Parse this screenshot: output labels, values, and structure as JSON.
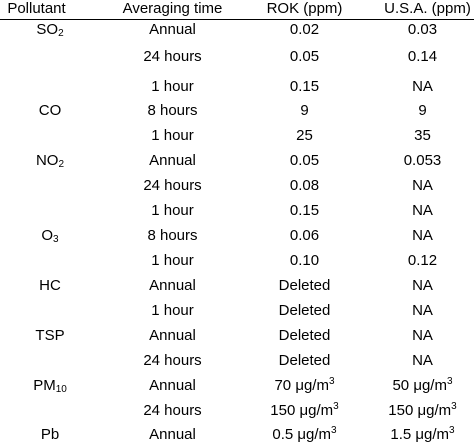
{
  "headers": [
    "Pollutant",
    "Averaging time",
    "ROK (ppm)",
    "U.S.A. (ppm)"
  ],
  "rows": [
    {
      "pollutant": "SO",
      "sub": "2",
      "time": "Annual",
      "rok": "0.02",
      "usa": "0.03"
    },
    {
      "pollutant": "",
      "sub": "",
      "time": "24 hours",
      "rok": "0.05",
      "usa": "0.14"
    },
    {
      "pollutant": "",
      "sub": "",
      "time": "1 hour",
      "rok": "0.15",
      "usa": "NA"
    },
    {
      "pollutant": "CO",
      "sub": "",
      "time": "8 hours",
      "rok": "9",
      "usa": "9"
    },
    {
      "pollutant": "",
      "sub": "",
      "time": "1 hour",
      "rok": "25",
      "usa": "35"
    },
    {
      "pollutant": "NO",
      "sub": "2",
      "time": "Annual",
      "rok": "0.05",
      "usa": "0.053"
    },
    {
      "pollutant": "",
      "sub": "",
      "time": "24 hours",
      "rok": "0.08",
      "usa": "NA"
    },
    {
      "pollutant": "",
      "sub": "",
      "time": "1 hour",
      "rok": "0.15",
      "usa": "NA"
    },
    {
      "pollutant": "O",
      "sub": "3",
      "time": "8 hours",
      "rok": "0.06",
      "usa": "NA"
    },
    {
      "pollutant": "",
      "sub": "",
      "time": "1 hour",
      "rok": "0.10",
      "usa": "0.12"
    },
    {
      "pollutant": "HC",
      "sub": "",
      "time": "Annual",
      "rok": "Deleted",
      "usa": "NA"
    },
    {
      "pollutant": "",
      "sub": "",
      "time": "1 hour",
      "rok": "Deleted",
      "usa": "NA"
    },
    {
      "pollutant": "TSP",
      "sub": "",
      "time": "Annual",
      "rok": "Deleted",
      "usa": "NA"
    },
    {
      "pollutant": "",
      "sub": "",
      "time": "24 hours",
      "rok": "Deleted",
      "usa": "NA"
    },
    {
      "pollutant": "PM",
      "sub": "10",
      "time": "Annual",
      "rok": "70 μg/m",
      "rok_sup": "3",
      "usa": "50 μg/m",
      "usa_sup": "3"
    },
    {
      "pollutant": "",
      "sub": "",
      "time": "24 hours",
      "rok": "150 μg/m",
      "rok_sup": "3",
      "usa": "150 μg/m",
      "usa_sup": "3"
    },
    {
      "pollutant": "Pb",
      "sub": "",
      "time": "Annual",
      "rok": "0.5 μg/m",
      "rok_sup": "3",
      "usa": "1.5 μg/m",
      "usa_sup": "3"
    }
  ]
}
